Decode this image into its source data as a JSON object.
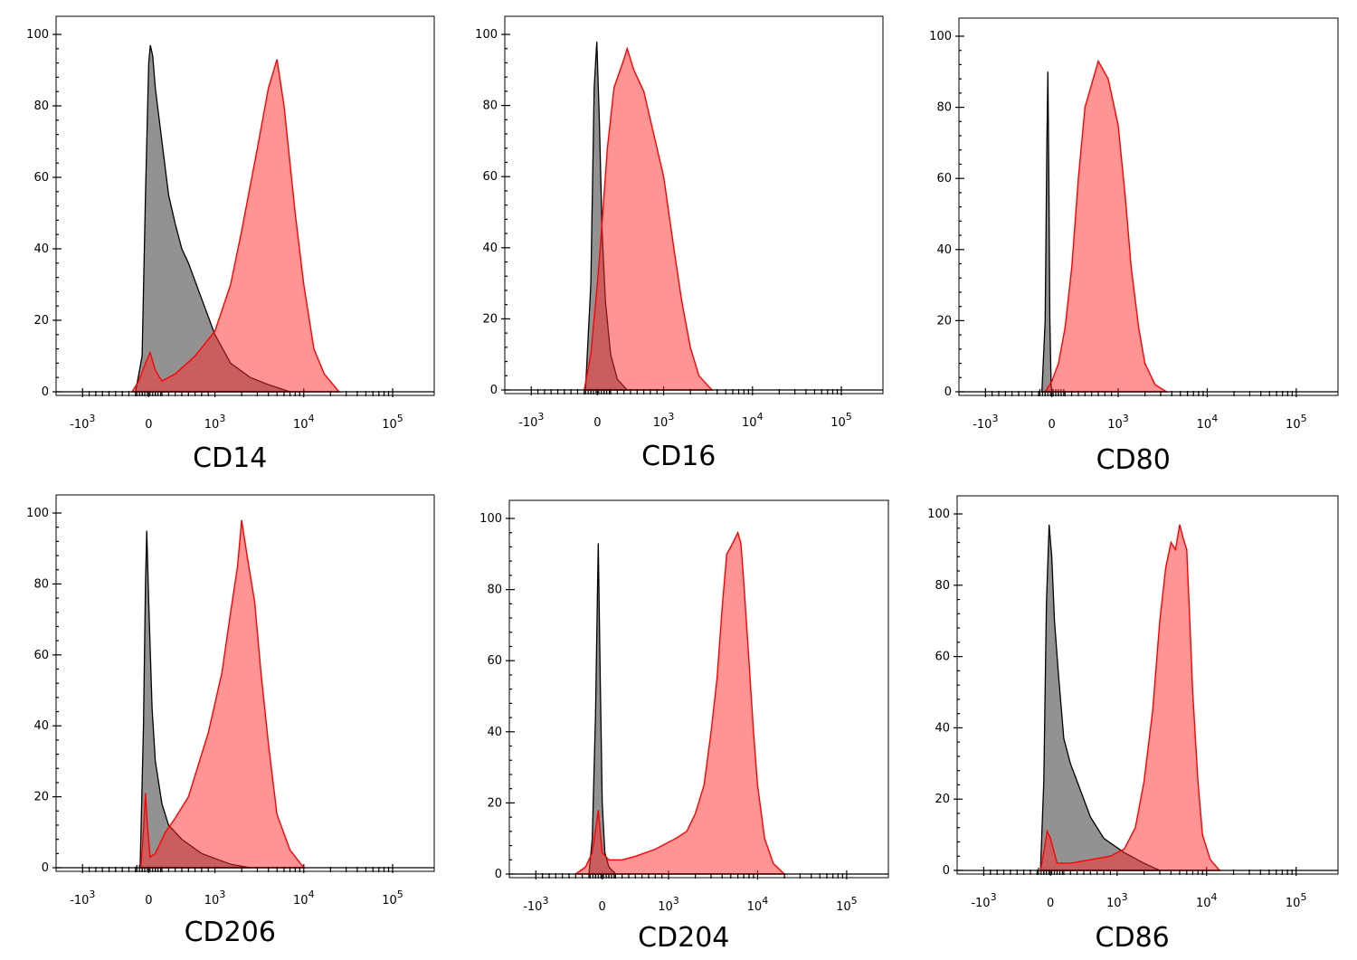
{
  "colors": {
    "control": "#808080",
    "control_edge": "#000000",
    "stained": "#ff6666",
    "stained_edge": "#ff0000"
  },
  "chart_data": [
    {
      "type": "area",
      "xlabel": "CD14",
      "x_scale": "biexponential",
      "x_ticks": [
        "-10 3",
        "0",
        "10 3",
        "10 4",
        "10 5"
      ],
      "y_ticks": [
        0,
        20,
        40,
        60,
        80,
        100
      ],
      "ylim": [
        0,
        100
      ],
      "series": [
        {
          "role": "control",
          "peak_x": 25,
          "peak_y": 97,
          "points": [
            [
              -200,
              0
            ],
            [
              -100,
              10
            ],
            [
              -50,
              55
            ],
            [
              0,
              92
            ],
            [
              25,
              97
            ],
            [
              60,
              94
            ],
            [
              100,
              85
            ],
            [
              200,
              70
            ],
            [
              300,
              55
            ],
            [
              400,
              47
            ],
            [
              500,
              40
            ],
            [
              600,
              36
            ],
            [
              800,
              26
            ],
            [
              1000,
              16
            ],
            [
              1500,
              8
            ],
            [
              2500,
              4
            ],
            [
              4000,
              2
            ],
            [
              7000,
              0
            ]
          ]
        },
        {
          "role": "stained",
          "peak_x": 5000,
          "peak_y": 93,
          "points": [
            [
              -250,
              0
            ],
            [
              -150,
              3
            ],
            [
              -50,
              8
            ],
            [
              20,
              11
            ],
            [
              100,
              6
            ],
            [
              200,
              3
            ],
            [
              400,
              5
            ],
            [
              700,
              10
            ],
            [
              1000,
              17
            ],
            [
              1500,
              30
            ],
            [
              2000,
              45
            ],
            [
              3000,
              68
            ],
            [
              4000,
              85
            ],
            [
              5000,
              93
            ],
            [
              6000,
              80
            ],
            [
              8000,
              50
            ],
            [
              10000,
              30
            ],
            [
              13000,
              12
            ],
            [
              17000,
              5
            ],
            [
              25000,
              0
            ]
          ]
        }
      ]
    },
    {
      "type": "area",
      "xlabel": "CD16",
      "x_scale": "biexponential",
      "x_ticks": [
        "-10 3",
        "0",
        "10 3",
        "10 4",
        "10 5"
      ],
      "y_ticks": [
        0,
        20,
        40,
        60,
        80,
        100
      ],
      "ylim": [
        0,
        100
      ],
      "series": [
        {
          "role": "control",
          "peak_x": -10,
          "peak_y": 98,
          "points": [
            [
              -180,
              0
            ],
            [
              -100,
              30
            ],
            [
              -50,
              85
            ],
            [
              -10,
              98
            ],
            [
              30,
              75
            ],
            [
              70,
              45
            ],
            [
              120,
              25
            ],
            [
              200,
              10
            ],
            [
              300,
              3
            ],
            [
              450,
              0
            ]
          ]
        },
        {
          "role": "stained",
          "peak_x": 450,
          "peak_y": 96,
          "points": [
            [
              -200,
              0
            ],
            [
              -100,
              10
            ],
            [
              0,
              30
            ],
            [
              50,
              42
            ],
            [
              150,
              68
            ],
            [
              250,
              85
            ],
            [
              400,
              93
            ],
            [
              450,
              96
            ],
            [
              550,
              90
            ],
            [
              700,
              84
            ],
            [
              1000,
              60
            ],
            [
              1300,
              40
            ],
            [
              1600,
              25
            ],
            [
              2000,
              12
            ],
            [
              2500,
              4
            ],
            [
              3500,
              0
            ]
          ]
        }
      ]
    },
    {
      "type": "area",
      "xlabel": "CD80",
      "x_scale": "biexponential",
      "x_ticks": [
        "-10 3",
        "0",
        "10 3",
        "10 4",
        "10 5"
      ],
      "y_ticks": [
        0,
        20,
        40,
        60,
        80,
        100
      ],
      "ylim": [
        0,
        100
      ],
      "series": [
        {
          "role": "control",
          "peak_x": -60,
          "peak_y": 90,
          "points": [
            [
              -150,
              0
            ],
            [
              -100,
              20
            ],
            [
              -75,
              70
            ],
            [
              -60,
              90
            ],
            [
              -45,
              60
            ],
            [
              -30,
              20
            ],
            [
              -10,
              2
            ],
            [
              0,
              0
            ]
          ]
        },
        {
          "role": "stained",
          "peak_x": 700,
          "peak_y": 93,
          "points": [
            [
              -100,
              0
            ],
            [
              0,
              3
            ],
            [
              100,
              8
            ],
            [
              200,
              18
            ],
            [
              300,
              35
            ],
            [
              400,
              60
            ],
            [
              500,
              80
            ],
            [
              700,
              93
            ],
            [
              850,
              88
            ],
            [
              1000,
              75
            ],
            [
              1200,
              55
            ],
            [
              1400,
              35
            ],
            [
              1700,
              18
            ],
            [
              2000,
              8
            ],
            [
              2600,
              2
            ],
            [
              3500,
              0
            ]
          ]
        }
      ]
    },
    {
      "type": "area",
      "xlabel": "CD206",
      "x_scale": "biexponential",
      "x_ticks": [
        "-10 3",
        "0",
        "10 3",
        "10 4",
        "10 5"
      ],
      "y_ticks": [
        0,
        20,
        40,
        60,
        80,
        100
      ],
      "ylim": [
        0,
        100
      ],
      "series": [
        {
          "role": "control",
          "peak_x": -30,
          "peak_y": 95,
          "points": [
            [
              -130,
              0
            ],
            [
              -80,
              40
            ],
            [
              -50,
              80
            ],
            [
              -30,
              95
            ],
            [
              0,
              75
            ],
            [
              50,
              45
            ],
            [
              100,
              30
            ],
            [
              200,
              18
            ],
            [
              300,
              12
            ],
            [
              500,
              8
            ],
            [
              800,
              4
            ],
            [
              1500,
              1
            ],
            [
              2500,
              0
            ]
          ]
        },
        {
          "role": "stained",
          "peak_x": 2000,
          "peak_y": 98,
          "points": [
            [
              -120,
              0
            ],
            [
              -80,
              10
            ],
            [
              -50,
              21
            ],
            [
              -20,
              12
            ],
            [
              20,
              3
            ],
            [
              100,
              4
            ],
            [
              250,
              10
            ],
            [
              400,
              14
            ],
            [
              600,
              20
            ],
            [
              900,
              38
            ],
            [
              1200,
              55
            ],
            [
              1500,
              72
            ],
            [
              1800,
              85
            ],
            [
              2000,
              98
            ],
            [
              2300,
              88
            ],
            [
              2800,
              75
            ],
            [
              3300,
              55
            ],
            [
              4000,
              35
            ],
            [
              5000,
              15
            ],
            [
              7000,
              5
            ],
            [
              10000,
              0
            ]
          ]
        }
      ]
    },
    {
      "type": "area",
      "xlabel": "CD204",
      "x_scale": "biexponential",
      "x_ticks": [
        "-10 3",
        "0",
        "10 3",
        "10 4",
        "10 5"
      ],
      "y_ticks": [
        0,
        20,
        40,
        60,
        80,
        100
      ],
      "ylim": [
        0,
        100
      ],
      "series": [
        {
          "role": "control",
          "peak_x": -60,
          "peak_y": 93,
          "points": [
            [
              -200,
              0
            ],
            [
              -150,
              10
            ],
            [
              -100,
              45
            ],
            [
              -60,
              93
            ],
            [
              -30,
              55
            ],
            [
              0,
              20
            ],
            [
              40,
              6
            ],
            [
              100,
              2
            ],
            [
              200,
              0
            ]
          ]
        },
        {
          "role": "stained",
          "peak_x": 6000,
          "peak_y": 96,
          "points": [
            [
              -400,
              0
            ],
            [
              -250,
              2
            ],
            [
              -150,
              6
            ],
            [
              -80,
              15
            ],
            [
              -60,
              18
            ],
            [
              -40,
              14
            ],
            [
              0,
              6
            ],
            [
              100,
              4
            ],
            [
              300,
              4
            ],
            [
              500,
              5
            ],
            [
              800,
              7
            ],
            [
              1200,
              10
            ],
            [
              1600,
              12
            ],
            [
              2000,
              17
            ],
            [
              2500,
              25
            ],
            [
              3000,
              40
            ],
            [
              3500,
              55
            ],
            [
              4000,
              75
            ],
            [
              4500,
              90
            ],
            [
              5000,
              92
            ],
            [
              6000,
              96
            ],
            [
              6500,
              93
            ],
            [
              7000,
              82
            ],
            [
              8000,
              60
            ],
            [
              9000,
              40
            ],
            [
              10000,
              25
            ],
            [
              12000,
              10
            ],
            [
              15000,
              3
            ],
            [
              20000,
              0
            ]
          ]
        }
      ]
    },
    {
      "type": "area",
      "xlabel": "CD86",
      "x_scale": "biexponential",
      "x_ticks": [
        "-10 3",
        "0",
        "10 3",
        "10 4",
        "10 5"
      ],
      "y_ticks": [
        0,
        20,
        40,
        60,
        80,
        100
      ],
      "ylim": [
        0,
        100
      ],
      "series": [
        {
          "role": "control",
          "peak_x": -20,
          "peak_y": 97,
          "points": [
            [
              -150,
              0
            ],
            [
              -100,
              25
            ],
            [
              -60,
              75
            ],
            [
              -20,
              97
            ],
            [
              20,
              88
            ],
            [
              60,
              70
            ],
            [
              120,
              55
            ],
            [
              200,
              37
            ],
            [
              300,
              30
            ],
            [
              400,
              25
            ],
            [
              600,
              15
            ],
            [
              800,
              9
            ],
            [
              1200,
              5
            ],
            [
              2000,
              2
            ],
            [
              3000,
              0
            ]
          ]
        },
        {
          "role": "stained",
          "peak_x": 5000,
          "peak_y": 97,
          "points": [
            [
              -150,
              0
            ],
            [
              -100,
              5
            ],
            [
              -50,
              11
            ],
            [
              0,
              9
            ],
            [
              100,
              2
            ],
            [
              300,
              2
            ],
            [
              600,
              3
            ],
            [
              900,
              4
            ],
            [
              1200,
              6
            ],
            [
              1600,
              12
            ],
            [
              2000,
              25
            ],
            [
              2500,
              45
            ],
            [
              3000,
              70
            ],
            [
              3500,
              85
            ],
            [
              4000,
              92
            ],
            [
              4500,
              90
            ],
            [
              5000,
              97
            ],
            [
              5500,
              93
            ],
            [
              6000,
              90
            ],
            [
              6500,
              70
            ],
            [
              7000,
              50
            ],
            [
              8000,
              25
            ],
            [
              9000,
              10
            ],
            [
              11000,
              3
            ],
            [
              14000,
              0
            ]
          ]
        }
      ]
    }
  ]
}
